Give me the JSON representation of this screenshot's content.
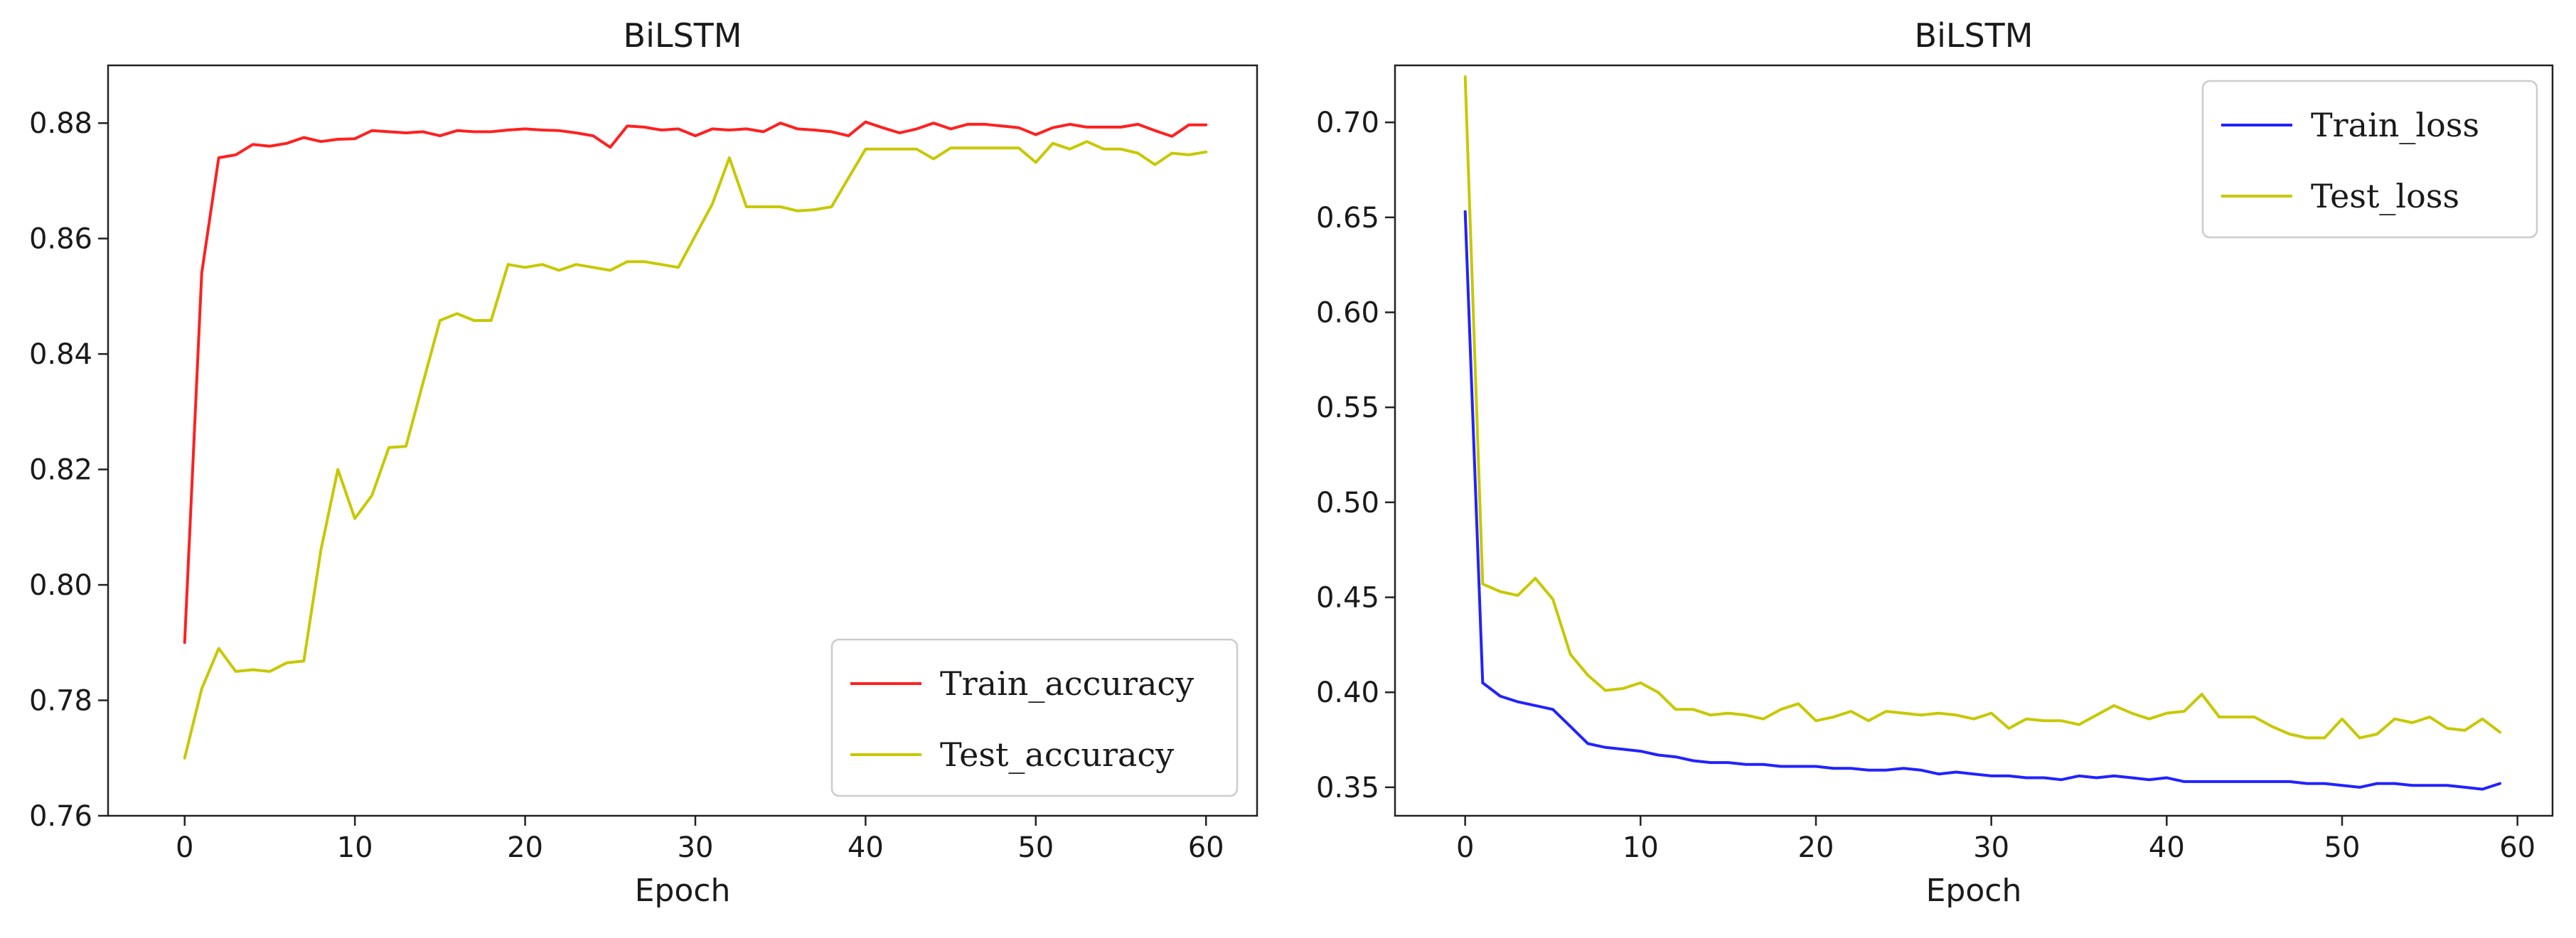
{
  "chart_data": [
    {
      "type": "line",
      "title": "BiLSTM",
      "xlabel": "Epoch",
      "ylabel": "",
      "xlim": [
        -4.5,
        63
      ],
      "ylim": [
        0.76,
        0.89
      ],
      "xticks": [
        "0",
        "10",
        "20",
        "30",
        "40",
        "50",
        "60"
      ],
      "xtick_values": [
        0,
        10,
        20,
        30,
        40,
        50,
        60
      ],
      "yticks": [
        "0.76",
        "0.78",
        "0.80",
        "0.82",
        "0.84",
        "0.86",
        "0.88"
      ],
      "ytick_values": [
        0.76,
        0.78,
        0.8,
        0.82,
        0.84,
        0.86,
        0.88
      ],
      "legend_position": "bottom-right",
      "grid": false,
      "x": [
        0,
        1,
        2,
        3,
        4,
        5,
        6,
        7,
        8,
        9,
        10,
        11,
        12,
        13,
        14,
        15,
        16,
        17,
        18,
        19,
        20,
        21,
        22,
        23,
        24,
        25,
        26,
        27,
        28,
        29,
        30,
        31,
        32,
        33,
        34,
        35,
        36,
        37,
        38,
        39,
        40,
        41,
        42,
        43,
        44,
        45,
        46,
        47,
        48,
        49,
        50,
        51,
        52,
        53,
        54,
        55,
        56,
        57,
        58,
        59,
        60
      ],
      "series": [
        {
          "name": "Train_accuracy",
          "color": "#ff2020",
          "values": [
            0.79,
            0.854,
            0.874,
            0.8745,
            0.8763,
            0.876,
            0.8765,
            0.8775,
            0.8768,
            0.8772,
            0.8773,
            0.8787,
            0.8785,
            0.8783,
            0.8785,
            0.8778,
            0.8787,
            0.8785,
            0.8785,
            0.8788,
            0.879,
            0.8788,
            0.8787,
            0.8783,
            0.8778,
            0.8758,
            0.8795,
            0.8793,
            0.8788,
            0.879,
            0.8778,
            0.879,
            0.8788,
            0.879,
            0.8785,
            0.88,
            0.879,
            0.8788,
            0.8785,
            0.8778,
            0.8802,
            0.8792,
            0.8783,
            0.879,
            0.88,
            0.879,
            0.8798,
            0.8798,
            0.8795,
            0.8792,
            0.878,
            0.8792,
            0.8798,
            0.8793,
            0.8793,
            0.8793,
            0.8798,
            0.8787,
            0.8777,
            0.8797,
            0.8797
          ]
        },
        {
          "name": "Test_accuracy",
          "color": "#c8c800",
          "values": [
            0.77,
            0.782,
            0.789,
            0.785,
            0.7853,
            0.785,
            0.7865,
            0.7868,
            0.806,
            0.82,
            0.8115,
            0.8155,
            0.8238,
            0.824,
            0.835,
            0.8458,
            0.847,
            0.8458,
            0.8458,
            0.8555,
            0.855,
            0.8555,
            0.8545,
            0.8555,
            0.855,
            0.8545,
            0.856,
            0.856,
            0.8555,
            0.855,
            0.8605,
            0.866,
            0.874,
            0.8655,
            0.8655,
            0.8655,
            0.8648,
            0.865,
            0.8655,
            0.8705,
            0.8755,
            0.8755,
            0.8755,
            0.8755,
            0.8738,
            0.8757,
            0.8757,
            0.8757,
            0.8757,
            0.8757,
            0.8732,
            0.8765,
            0.8755,
            0.8768,
            0.8755,
            0.8755,
            0.8748,
            0.8728,
            0.8748,
            0.8745,
            0.875
          ]
        }
      ]
    },
    {
      "type": "line",
      "title": "BiLSTM",
      "xlabel": "Epoch",
      "ylabel": "",
      "xlim": [
        -4,
        62
      ],
      "ylim": [
        0.335,
        0.73
      ],
      "xticks": [
        "0",
        "10",
        "20",
        "30",
        "40",
        "50",
        "60"
      ],
      "xtick_values": [
        0,
        10,
        20,
        30,
        40,
        50,
        60
      ],
      "yticks": [
        "0.35",
        "0.40",
        "0.45",
        "0.50",
        "0.55",
        "0.60",
        "0.65",
        "0.70"
      ],
      "ytick_values": [
        0.35,
        0.4,
        0.45,
        0.5,
        0.55,
        0.6,
        0.65,
        0.7
      ],
      "legend_position": "top-right",
      "grid": false,
      "x": [
        0,
        1,
        2,
        3,
        4,
        5,
        6,
        7,
        8,
        9,
        10,
        11,
        12,
        13,
        14,
        15,
        16,
        17,
        18,
        19,
        20,
        21,
        22,
        23,
        24,
        25,
        26,
        27,
        28,
        29,
        30,
        31,
        32,
        33,
        34,
        35,
        36,
        37,
        38,
        39,
        40,
        41,
        42,
        43,
        44,
        45,
        46,
        47,
        48,
        49,
        50,
        51,
        52,
        53,
        54,
        55,
        56,
        57,
        58,
        59
      ],
      "series": [
        {
          "name": "Train_loss",
          "color": "#2222ff",
          "values": [
            0.653,
            0.405,
            0.398,
            0.395,
            0.393,
            0.391,
            0.382,
            0.373,
            0.371,
            0.37,
            0.369,
            0.367,
            0.366,
            0.364,
            0.363,
            0.363,
            0.362,
            0.362,
            0.361,
            0.361,
            0.361,
            0.36,
            0.36,
            0.359,
            0.359,
            0.36,
            0.359,
            0.357,
            0.358,
            0.357,
            0.356,
            0.356,
            0.355,
            0.355,
            0.354,
            0.356,
            0.355,
            0.356,
            0.355,
            0.354,
            0.355,
            0.353,
            0.353,
            0.353,
            0.353,
            0.353,
            0.353,
            0.353,
            0.352,
            0.352,
            0.351,
            0.35,
            0.352,
            0.352,
            0.351,
            0.351,
            0.351,
            0.35,
            0.349,
            0.352
          ]
        },
        {
          "name": "Test_loss",
          "color": "#c8c800",
          "values": [
            0.724,
            0.457,
            0.453,
            0.451,
            0.46,
            0.449,
            0.42,
            0.409,
            0.401,
            0.402,
            0.405,
            0.4,
            0.391,
            0.391,
            0.388,
            0.389,
            0.388,
            0.386,
            0.391,
            0.394,
            0.385,
            0.387,
            0.39,
            0.385,
            0.39,
            0.389,
            0.388,
            0.389,
            0.388,
            0.386,
            0.389,
            0.381,
            0.386,
            0.385,
            0.385,
            0.383,
            0.388,
            0.393,
            0.389,
            0.386,
            0.389,
            0.39,
            0.399,
            0.387,
            0.387,
            0.387,
            0.382,
            0.378,
            0.376,
            0.376,
            0.386,
            0.376,
            0.378,
            0.386,
            0.384,
            0.387,
            0.381,
            0.38,
            0.386,
            0.379
          ]
        }
      ]
    }
  ]
}
